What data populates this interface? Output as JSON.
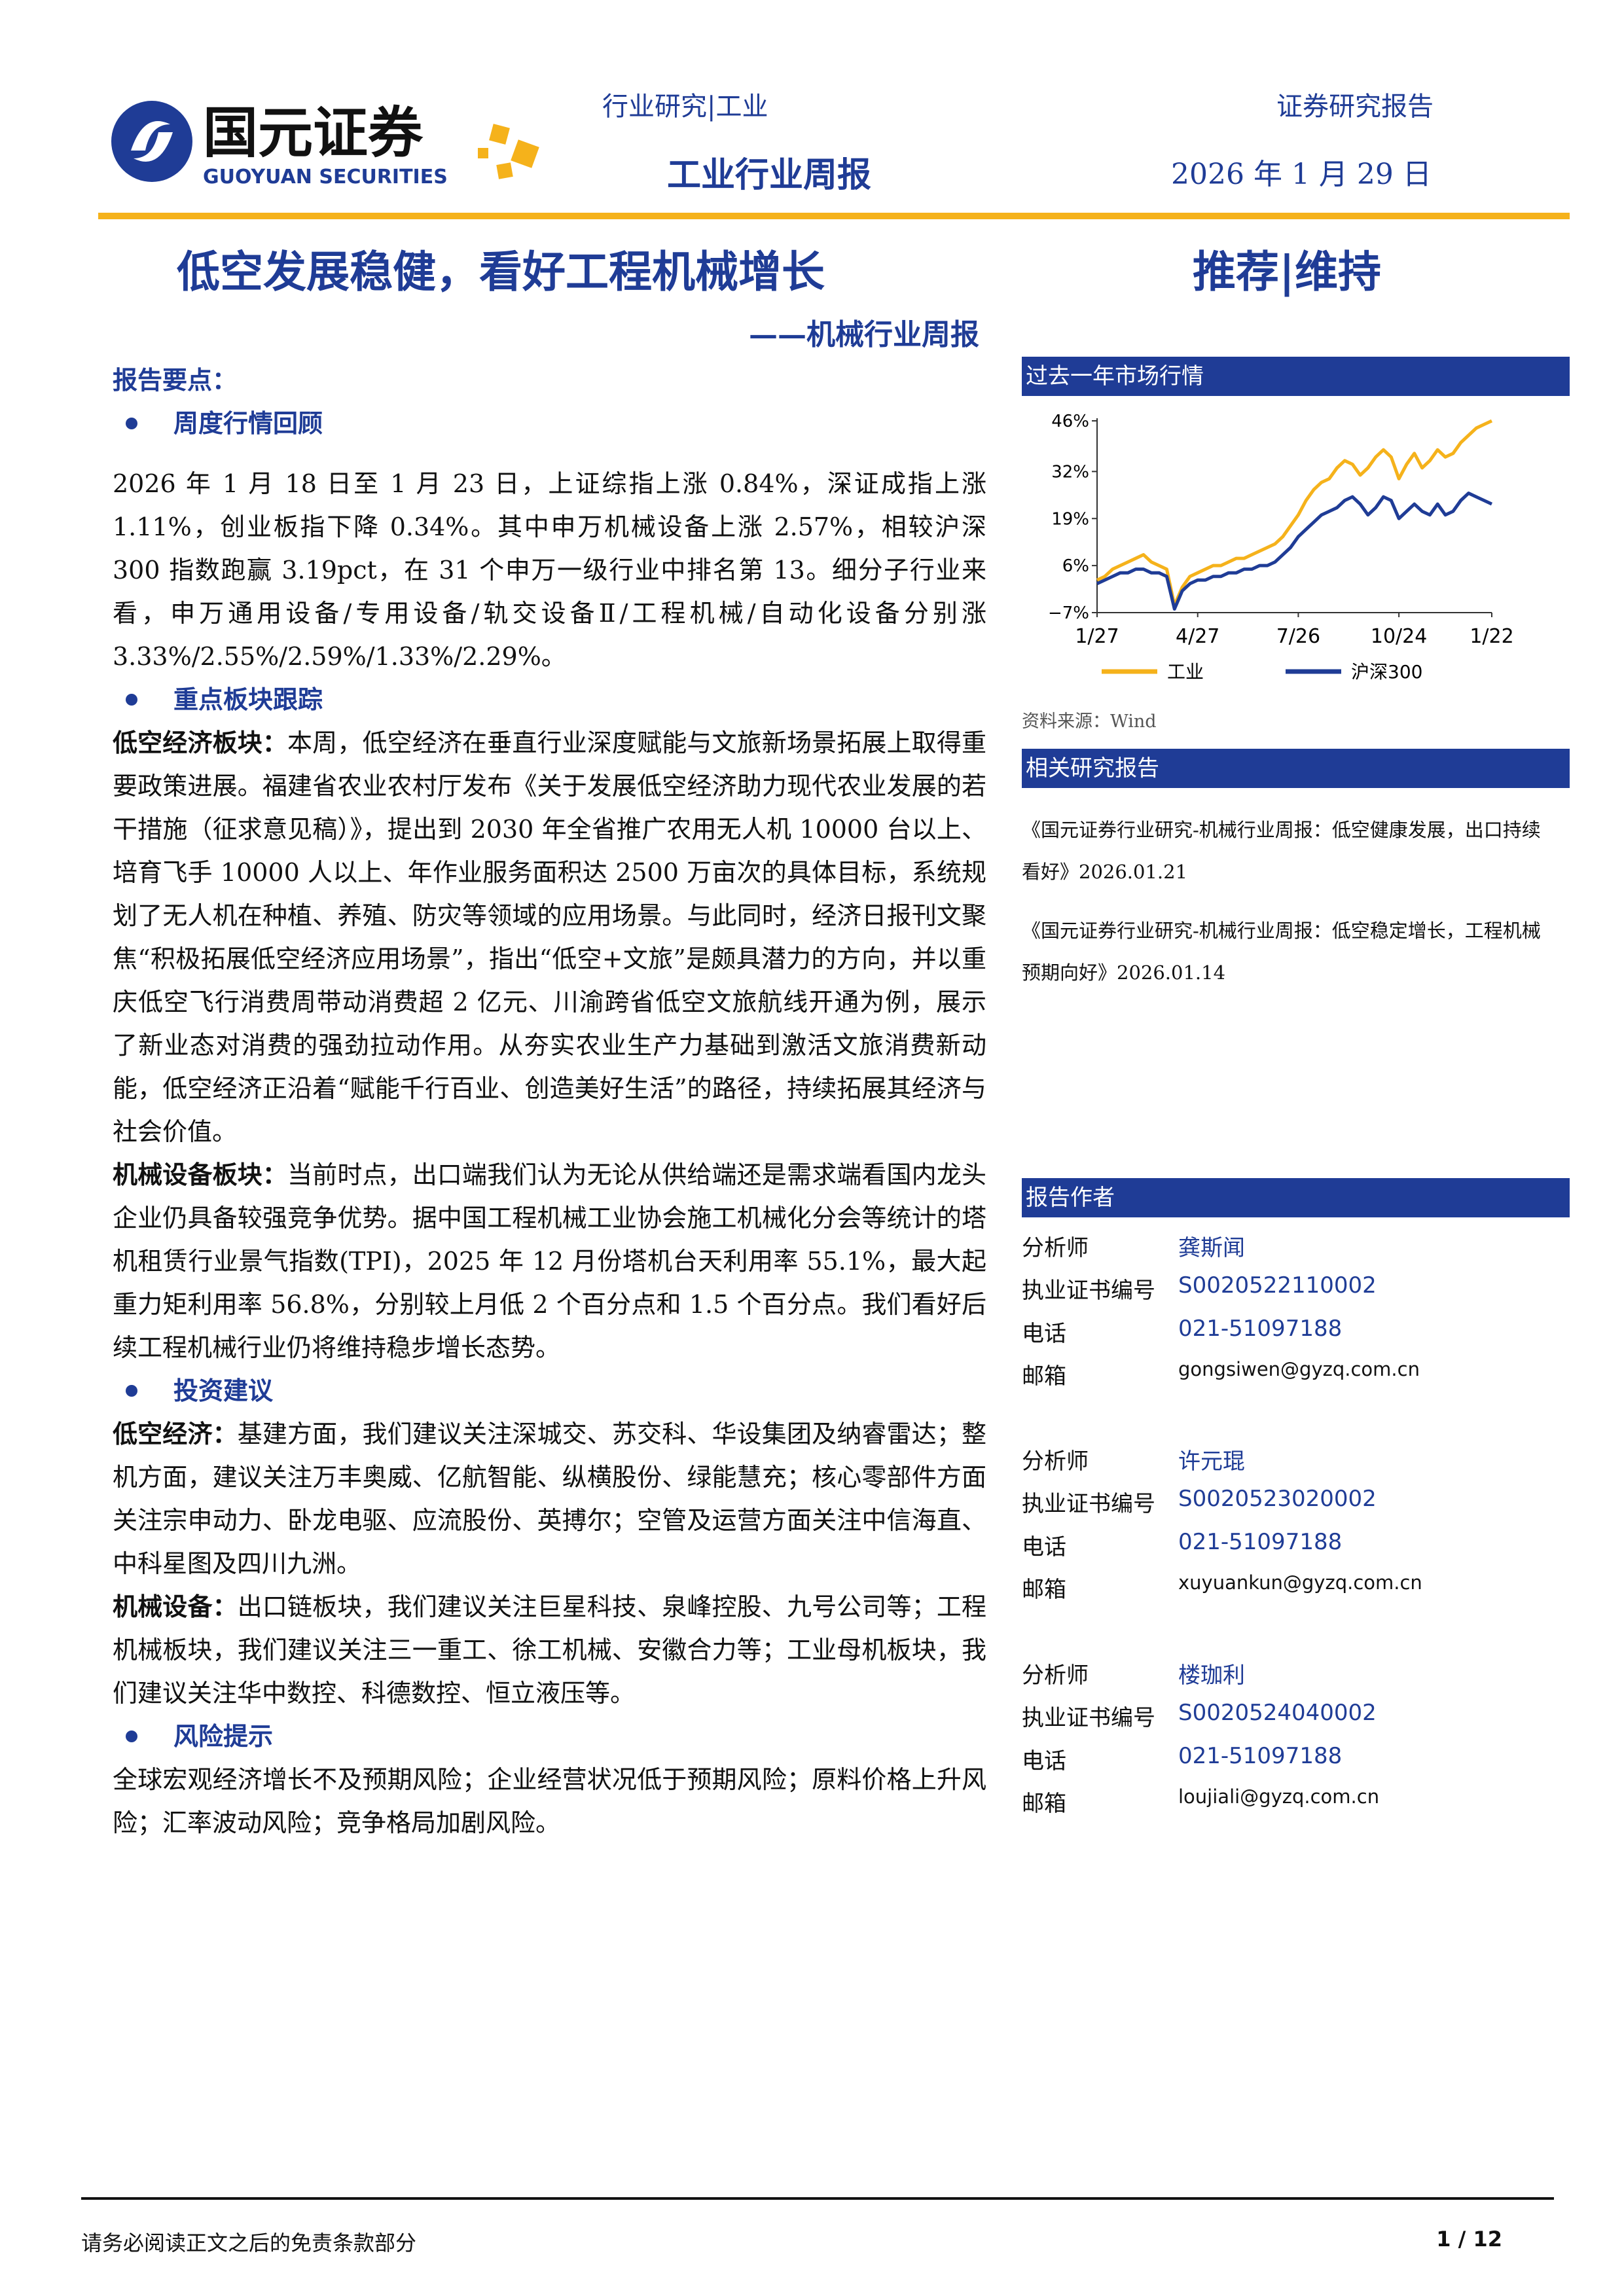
{
  "header": {
    "logo_cn": "国元证券",
    "logo_en": "GUOYUAN SECURITIES",
    "category": "行业研究|工业",
    "doc_type": "证券研究报告",
    "report_name": "工业行业周报",
    "date": "2026 年 1 月 29 日"
  },
  "title": "低空发展稳健，看好工程机械增长",
  "subtitle": "——机械行业周报",
  "rating": "推荐|维持",
  "summary_label": "报告要点：",
  "sections": [
    {
      "heading": "周度行情回顾",
      "paragraphs": [
        {
          "text": "2026 年 1 月 18 日至 1 月 23 日，上证综指上涨 0.84%，深证成指上涨 1.11%，创业板指下降 0.34%。其中申万机械设备上涨 2.57%，相较沪深 300 指数跑赢 3.19pct，在 31 个申万一级行业中排名第 13。细分子行业来看，申万通用设备/专用设备/轨交设备Ⅱ/工程机械/自动化设备分别涨 3.33%/2.55%/2.59%/1.33%/2.29%。"
        }
      ]
    },
    {
      "heading": "重点板块跟踪",
      "paragraphs": [
        {
          "lead": "低空经济板块：",
          "text": "本周，低空经济在垂直行业深度赋能与文旅新场景拓展上取得重要政策进展。福建省农业农村厅发布《关于发展低空经济助力现代农业发展的若干措施（征求意见稿）》，提出到 2030 年全省推广农用无人机 10000 台以上、培育飞手 10000 人以上、年作业服务面积达 2500 万亩次的具体目标，系统规划了无人机在种植、养殖、防灾等领域的应用场景。与此同时，经济日报刊文聚焦“积极拓展低空经济应用场景”，指出“低空+文旅”是颇具潜力的方向，并以重庆低空飞行消费周带动消费超 2 亿元、川渝跨省低空文旅航线开通为例，展示了新业态对消费的强劲拉动作用。从夯实农业生产力基础到激活文旅消费新动能，低空经济正沿着“赋能千行百业、创造美好生活”的路径，持续拓展其经济与社会价值。"
        },
        {
          "lead": "机械设备板块：",
          "text": "当前时点，出口端我们认为无论从供给端还是需求端看国内龙头企业仍具备较强竞争优势。据中国工程机械工业协会施工机械化分会等统计的塔机租赁行业景气指数(TPI)，2025 年 12 月份塔机台天利用率 55.1%，最大起重力矩利用率 56.8%，分别较上月低 2 个百分点和 1.5 个百分点。我们看好后续工程机械行业仍将维持稳步增长态势。"
        }
      ]
    },
    {
      "heading": "投资建议",
      "paragraphs": [
        {
          "lead": "低空经济：",
          "text": "基建方面，我们建议关注深城交、苏交科、华设集团及纳睿雷达；整机方面，建议关注万丰奥威、亿航智能、纵横股份、绿能慧充；核心零部件方面关注宗申动力、卧龙电驱、应流股份、英搏尔；空管及运营方面关注中信海直、中科星图及四川九洲。"
        },
        {
          "lead": "机械设备：",
          "text": "出口链板块，我们建议关注巨星科技、泉峰控股、九号公司等；工程机械板块，我们建议关注三一重工、徐工机械、安徽合力等；工业母机板块，我们建议关注华中数控、科德数控、恒立液压等。"
        }
      ]
    },
    {
      "heading": "风险提示",
      "paragraphs": [
        {
          "text": "全球宏观经济增长不及预期风险；企业经营状况低于预期风险；原料价格上升风险；汇率波动风险；竞争格局加剧风险。"
        }
      ]
    }
  ],
  "market_title": "过去一年市场行情",
  "chart_data": {
    "type": "line",
    "categories": [
      "1/27",
      null,
      null,
      null,
      null,
      null,
      null,
      null,
      null,
      null,
      null,
      null,
      null,
      "4/27",
      null,
      null,
      null,
      null,
      null,
      null,
      null,
      null,
      null,
      null,
      null,
      null,
      "7/26",
      null,
      null,
      null,
      null,
      null,
      null,
      null,
      null,
      null,
      null,
      null,
      null,
      "10/24",
      null,
      null,
      null,
      null,
      null,
      null,
      null,
      null,
      null,
      null,
      null,
      "1/22"
    ],
    "series": [
      {
        "name": "工业",
        "color": "#f5b21b",
        "values": [
          2,
          3,
          5,
          6,
          7,
          8,
          9,
          7,
          6,
          5,
          -5,
          0,
          3,
          4,
          5,
          6,
          6,
          7,
          8,
          8,
          9,
          10,
          11,
          12,
          14,
          17,
          20,
          24,
          27,
          29,
          30,
          33,
          35,
          34,
          31,
          33,
          36,
          38,
          36,
          30,
          34,
          37,
          33,
          35,
          38,
          36,
          37,
          40,
          42,
          44,
          45,
          46
        ]
      },
      {
        "name": "沪深300",
        "color": "#1f3c96",
        "values": [
          1,
          2,
          3,
          4,
          4,
          5,
          5,
          4,
          4,
          3,
          -6,
          -1,
          1,
          2,
          2,
          3,
          3,
          4,
          4,
          5,
          5,
          6,
          6,
          7,
          9,
          11,
          14,
          16,
          18,
          20,
          21,
          22,
          24,
          25,
          23,
          20,
          22,
          25,
          24,
          19,
          21,
          23,
          21,
          20,
          23,
          20,
          21,
          24,
          26,
          25,
          24,
          23
        ]
      }
    ],
    "ylim": [
      -7,
      46
    ],
    "yticks": [
      {
        "value": 46,
        "label": "46%"
      },
      {
        "value": 32,
        "label": "32%"
      },
      {
        "value": 19,
        "label": "19%"
      },
      {
        "value": 6,
        "label": "6%"
      },
      {
        "value": -7,
        "label": "−7%"
      }
    ],
    "grid": false,
    "legend": "bottom"
  },
  "source": "资料来源：Wind",
  "related_title": "相关研究报告",
  "related": [
    "《国元证券行业研究-机械行业周报：低空健康发展，出口持续看好》2026.01.21",
    "《国元证券行业研究-机械行业周报：低空稳定增长，工程机械预期向好》2026.01.14"
  ],
  "authors_title": "报告作者",
  "authors": [
    {
      "analyst_label": "分析师",
      "name": "龚斯闻",
      "cert_label": "执业证书编号",
      "cert": "S0020522110002",
      "phone_label": "电话",
      "phone": "021-51097188",
      "email_label": "邮箱",
      "email": "gongsiwen@gyzq.com.cn"
    },
    {
      "analyst_label": "分析师",
      "name": "许元琨",
      "cert_label": "执业证书编号",
      "cert": "S0020523020002",
      "phone_label": "电话",
      "phone": "021-51097188",
      "email_label": "邮箱",
      "email": "xuyuankun@gyzq.com.cn"
    },
    {
      "analyst_label": "分析师",
      "name": "楼珈利",
      "cert_label": "执业证书编号",
      "cert": "S0020524040002",
      "phone_label": "电话",
      "phone": "021-51097188",
      "email_label": "邮箱",
      "email": "loujiali@gyzq.com.cn"
    }
  ],
  "footer": {
    "disclaimer": "请务必阅读正文之后的免责条款部分",
    "page": "1 / 12"
  }
}
